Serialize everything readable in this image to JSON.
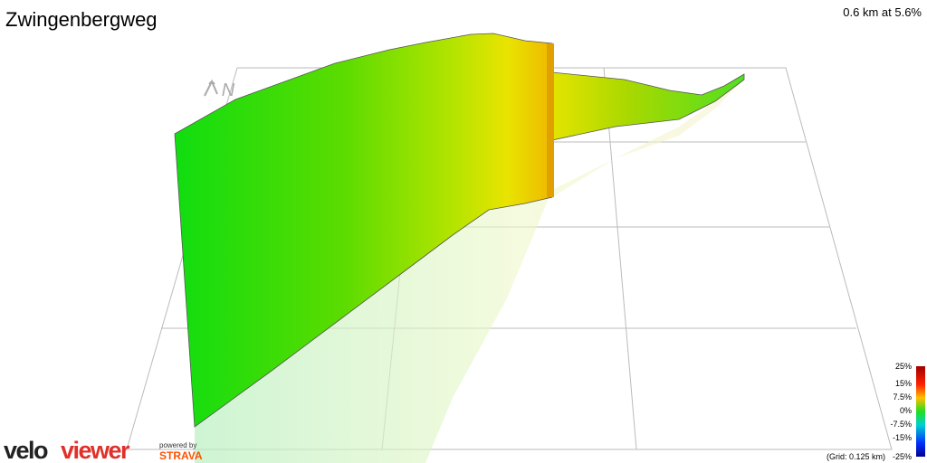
{
  "header": {
    "title": "Zwingenbergweg",
    "summary": "0.6 km at 5.6%"
  },
  "compass": "N",
  "legend": {
    "labels": [
      "25%",
      "15%",
      "7.5%",
      "0%",
      "-7.5%",
      "-15%",
      "-25%"
    ]
  },
  "grid_note": "(Grid: 0.125 km)",
  "branding": {
    "velo": "velo",
    "viewer": "viewer",
    "powered_by": "powered by",
    "strava": "STRAVA"
  }
}
